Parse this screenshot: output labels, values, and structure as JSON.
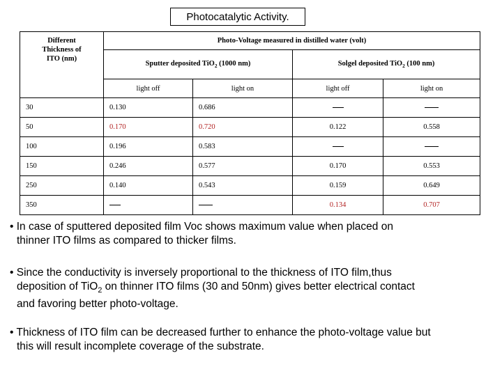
{
  "title": "Photocatalytic Activity.",
  "table": {
    "left_header": [
      "Different",
      "Thickness of",
      "ITO (nm)"
    ],
    "main_header": "Photo-Voltage  measured in distilled water (volt)",
    "group1_label": "Sputter deposited TiO",
    "group1_sub": "2",
    "group1_suffix": " (1000 nm)",
    "group2_label": "Solgel deposited TiO",
    "group2_sub": "2",
    "group2_suffix": " (100 nm)",
    "col_labels": [
      "light off",
      "light on",
      "light off",
      "light on"
    ],
    "rows": [
      {
        "thickness": "30",
        "c1": "0.130",
        "c2": "0.686",
        "c3": "",
        "c4": ""
      },
      {
        "thickness": "50",
        "c1": "0.170",
        "c2": "0.720",
        "c3": "0.122",
        "c4": "0.558"
      },
      {
        "thickness": "100",
        "c1": "0.196",
        "c2": "0.583",
        "c3": "",
        "c4": ""
      },
      {
        "thickness": "150",
        "c1": "0.246",
        "c2": "0.577",
        "c3": "0.170",
        "c4": "0.553"
      },
      {
        "thickness": "250",
        "c1": "0.140",
        "c2": "0.543",
        "c3": "0.159",
        "c4": "0.649"
      },
      {
        "thickness": "350",
        "c1": "",
        "c2": "",
        "c3": "0.134",
        "c4": "0.707"
      }
    ],
    "highlight_color": "#b22222"
  },
  "bullets": {
    "b1_line1": "• In case of sputtered deposited film Voc shows maximum value when placed on",
    "b1_line2": "thinner ITO films as compared to thicker films.",
    "b2_line1": "• Since the conductivity is inversely proportional to the thickness of ITO film,thus",
    "b2_line2a": "deposition of TiO",
    "b2_line2_sub": "2",
    "b2_line2b": " on thinner ITO films (30 and 50nm) gives better electrical contact",
    "b2_line3": "and favoring better photo-voltage.",
    "b3_line1": "• Thickness of ITO film can be decreased further to enhance the photo-voltage value but",
    "b3_line2": "this will result incomplete coverage of the substrate."
  }
}
